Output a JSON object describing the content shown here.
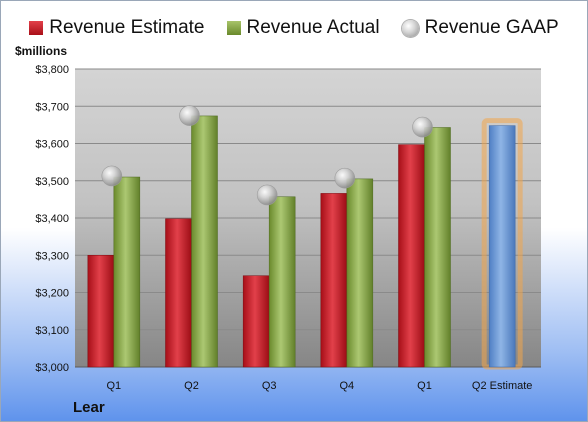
{
  "chart_data": {
    "type": "bar",
    "unit_label": "$millions",
    "company": "Lear",
    "categories": [
      "Q1",
      "Q2",
      "Q3",
      "Q4",
      "Q1",
      "Q2 Estimate"
    ],
    "series": [
      {
        "name": "Revenue Estimate",
        "values": [
          3300,
          3398,
          3245,
          3466,
          3597,
          null
        ],
        "color": "#c8202a"
      },
      {
        "name": "Revenue Actual",
        "values": [
          3510,
          3674,
          3457,
          3505,
          3643,
          null
        ],
        "color": "#8eab4b"
      },
      {
        "name": "Revenue GAAP",
        "values": [
          3513,
          3675,
          3462,
          3507,
          3644,
          null
        ],
        "color": "#c0c0c0"
      }
    ],
    "forecast": {
      "category": "Q2 Estimate",
      "value": 3648,
      "color": "#6f9fd8",
      "glow": "#f3a54a"
    },
    "y_ticks": [
      "$3,000",
      "$3,100",
      "$3,200",
      "$3,300",
      "$3,400",
      "$3,500",
      "$3,600",
      "$3,700",
      "$3,800"
    ],
    "ylim": [
      3000,
      3800
    ],
    "legend_position": "top",
    "grid": true
  }
}
